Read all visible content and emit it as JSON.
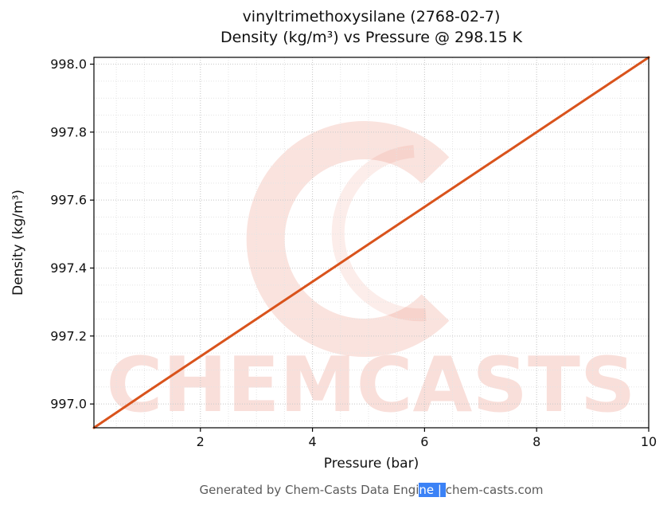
{
  "figure": {
    "title_line1": "vinyltrimethoxysilane (2768-02-7)",
    "title_line2": "Density (kg/m³) vs Pressure @ 298.15 K",
    "footer": {
      "prefix": "Generated by Chem-Casts Data Engi",
      "selected": "ne | ",
      "suffix": "chem-casts.com"
    },
    "watermark_text": "CHEMCASTS",
    "colors": {
      "line": "#d9531c",
      "watermark": "#e05030",
      "grid_major": "#c9c9c9",
      "grid_minor": "#e4e4e4",
      "spine": "#000000",
      "selection_bg": "#3b82f6"
    }
  },
  "chart_data": {
    "type": "line",
    "title": "vinyltrimethoxysilane (2768-02-7) — Density (kg/m³) vs Pressure @ 298.15 K",
    "xlabel": "Pressure (bar)",
    "ylabel": "Density (kg/m³)",
    "x": [
      0.1,
      1,
      2,
      3,
      4,
      5,
      6,
      7,
      8,
      9,
      10
    ],
    "values": [
      996.93,
      997.03,
      997.14,
      997.25,
      997.36,
      997.47,
      997.58,
      997.69,
      997.8,
      997.91,
      998.02
    ],
    "xlim": [
      0.1,
      10
    ],
    "ylim": [
      996.93,
      998.02
    ],
    "xticks": [
      2,
      4,
      6,
      8,
      10
    ],
    "xtick_labels": [
      "2",
      "4",
      "6",
      "8",
      "10"
    ],
    "yticks": [
      997.0,
      997.2,
      997.4,
      997.6,
      997.8,
      998.0
    ],
    "ytick_labels": [
      "997.0",
      "997.2",
      "997.4",
      "997.6",
      "997.8",
      "998.0"
    ],
    "x_minor_step": 0.5,
    "y_minor_step": 0.05,
    "grid": true,
    "legend": null
  }
}
